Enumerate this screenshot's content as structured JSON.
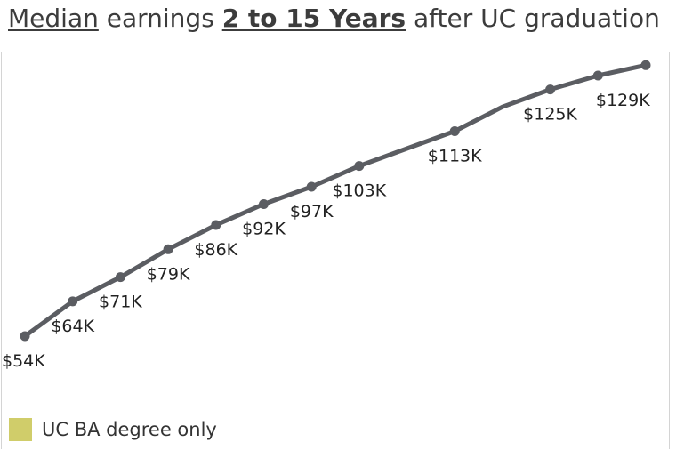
{
  "title": {
    "part1": "Median",
    "part2": " earnings ",
    "part3": "2 to 15 Years",
    "part4": " after UC graduation"
  },
  "chart_data": {
    "type": "line",
    "title": "Median earnings 2 to 15 Years after UC graduation",
    "xlabel": "",
    "ylabel": "",
    "x": [
      2,
      3,
      4,
      5,
      6,
      7,
      8,
      9,
      10,
      11,
      12,
      13,
      14,
      15
    ],
    "grid": false,
    "legend_position": "bottom-left",
    "series": [
      {
        "name": "UC BA degree only",
        "color": "#5b5d62",
        "values": [
          54,
          64,
          71,
          79,
          86,
          92,
          97,
          103,
          108,
          113,
          120,
          125,
          129,
          132
        ],
        "labels": [
          "$54K",
          "$64K",
          "$71K",
          "$79K",
          "$86K",
          "$92K",
          "$97K",
          "$103K",
          null,
          "$113K",
          null,
          "$125K",
          "$129K",
          null
        ],
        "markers": [
          true,
          true,
          true,
          true,
          true,
          true,
          true,
          true,
          false,
          true,
          false,
          true,
          true,
          true
        ]
      }
    ]
  },
  "legend": {
    "label": "UC BA degree only",
    "swatch_color": "#d0cd6a"
  }
}
